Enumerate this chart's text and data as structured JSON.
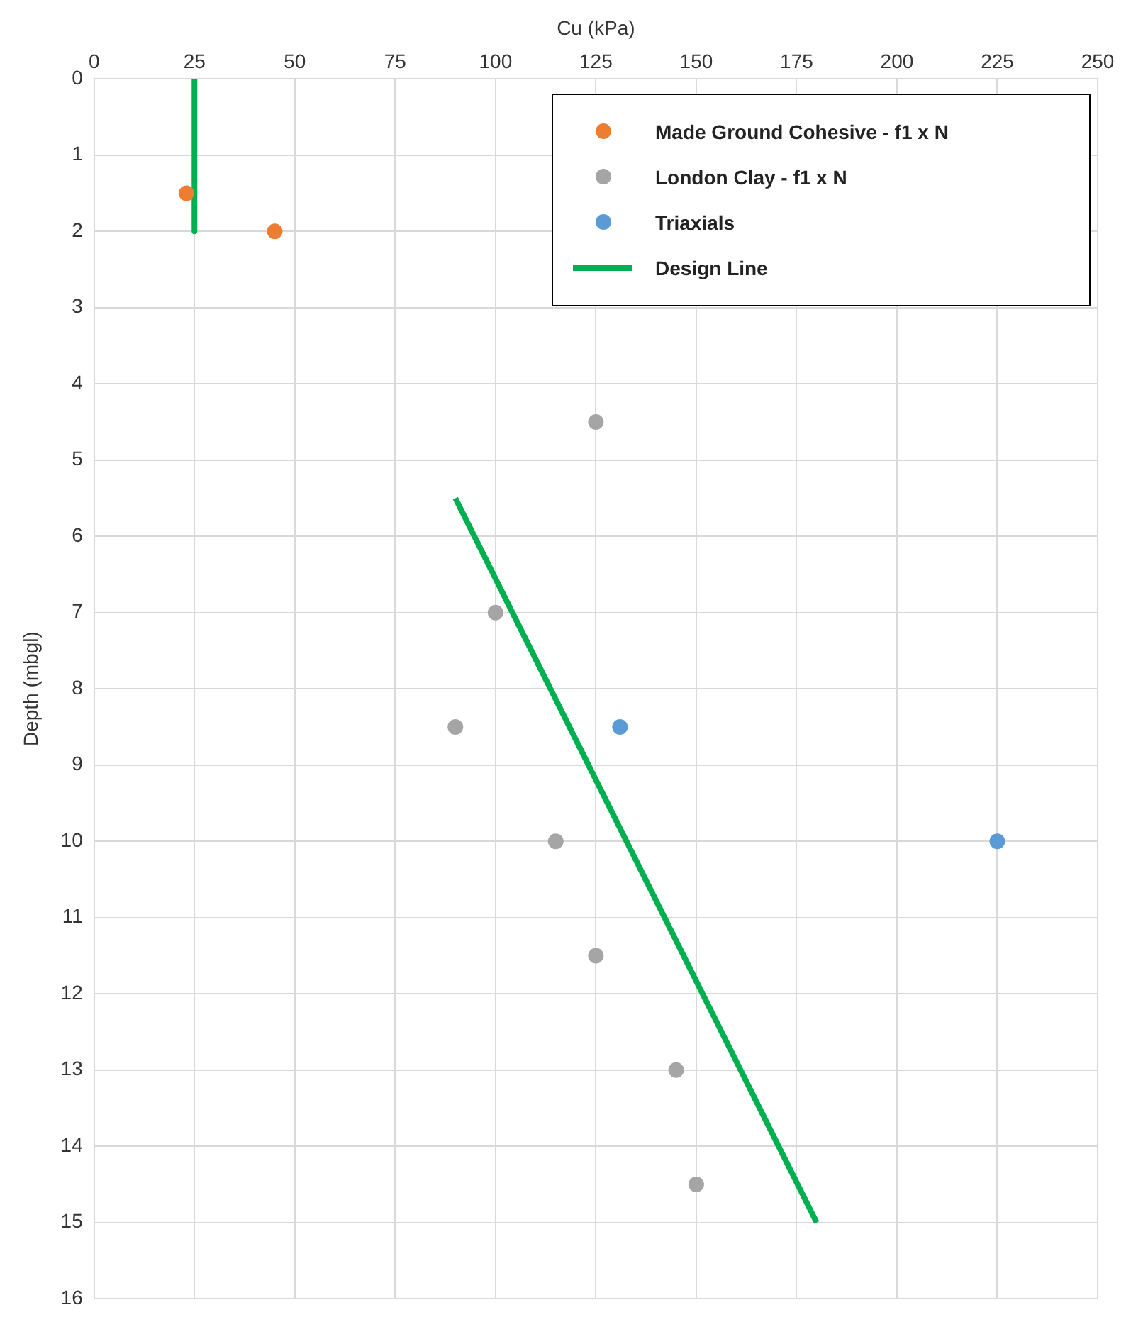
{
  "chart_data": {
    "type": "scatter",
    "xlabel": "Cu (kPa)",
    "ylabel": "Depth (mbgl)",
    "xlim": [
      0,
      250
    ],
    "xticks": [
      0,
      25,
      50,
      75,
      100,
      125,
      150,
      175,
      200,
      225,
      250
    ],
    "ylim": [
      16,
      0
    ],
    "yticks": [
      0,
      1,
      2,
      3,
      4,
      5,
      6,
      7,
      8,
      9,
      10,
      11,
      12,
      13,
      14,
      15,
      16
    ],
    "grid": true,
    "legend": "top right",
    "series": [
      {
        "name": "Made Ground Cohesive - f1 x N",
        "marker": "circle",
        "color": "#ed7d31",
        "x": [
          23,
          45
        ],
        "values": [
          1.5,
          2
        ]
      },
      {
        "name": "London Clay - f1 x N",
        "marker": "circle",
        "color": "#a5a5a5",
        "x": [
          125,
          100,
          90,
          115,
          125,
          145,
          150
        ],
        "values": [
          4.5,
          7,
          8.5,
          10,
          11.5,
          13,
          14.5
        ]
      },
      {
        "name": "Triaxials",
        "marker": "circle",
        "color": "#5b9bd5",
        "x": [
          131,
          225
        ],
        "values": [
          8.5,
          10
        ]
      },
      {
        "name": "Design Line",
        "type": "line",
        "marker": "none",
        "line_style": "solid",
        "color": "#00b050",
        "x": [
          25,
          25,
          null,
          90,
          180
        ],
        "values": [
          0,
          2,
          null,
          5.5,
          15
        ]
      }
    ]
  }
}
